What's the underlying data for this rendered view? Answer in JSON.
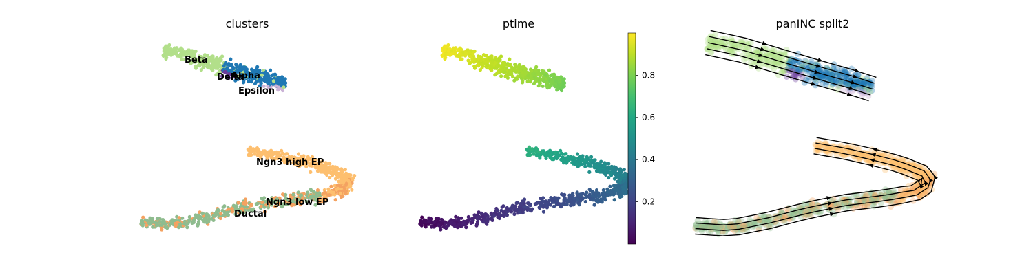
{
  "chart_data": [
    {
      "type": "scatter",
      "title": "clusters",
      "legend": "on data",
      "grid": false,
      "groups": [
        {
          "name": "Beta",
          "color": "#b2df8a"
        },
        {
          "name": "Delta",
          "color": "#6a3d9a"
        },
        {
          "name": "Alpha",
          "color": "#1f78b4"
        },
        {
          "name": "Epsilon",
          "color": "#cab2d6"
        },
        {
          "name": "Ngn3 high EP",
          "color": "#fdbf6f"
        },
        {
          "name": "Ngn3 low EP",
          "color": "#f4a261"
        },
        {
          "name": "Ductal",
          "color": "#8fbc8f"
        }
      ],
      "labels": [
        "Beta",
        "Delta",
        "Alpha",
        "Epsilon",
        "Ngn3 high EP",
        "Ngn3 low EP",
        "Ductal"
      ]
    },
    {
      "type": "scatter",
      "title": "ptime",
      "colorscale": "viridis",
      "colorbar": {
        "range": [
          0,
          1
        ],
        "ticks": [
          0.2,
          0.4,
          0.6,
          0.8
        ],
        "tick_labels": [
          "0.2",
          "0.4",
          "0.6",
          "0.8"
        ]
      },
      "grid": false
    },
    {
      "type": "scatter",
      "title": "panINC split2",
      "overlay": "velocity streamlines",
      "grid": false
    }
  ]
}
